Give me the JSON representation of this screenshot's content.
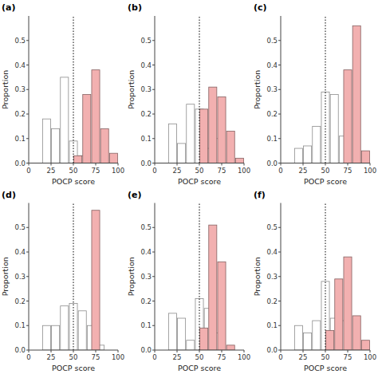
{
  "chart_data": [
    {
      "type": "bar",
      "title": "(a)",
      "xlabel": "POCP score",
      "ylabel": "Proportion",
      "series": [
        {
          "color": "#ffffff",
          "x": [
            20,
            30,
            40,
            50,
            60
          ],
          "values": [
            0.18,
            0.14,
            0.35,
            0.09,
            0.03
          ]
        },
        {
          "color": "#f2b0b0",
          "x": [
            55,
            65,
            75,
            85,
            95
          ],
          "values": [
            0.03,
            0.28,
            0.38,
            0.14,
            0.04
          ]
        }
      ],
      "reference_x": 50,
      "xlim": [
        0,
        100
      ],
      "xticks": [
        0,
        25,
        50,
        75,
        100
      ],
      "ylim": [
        0,
        0.6
      ],
      "yticks": [
        {
          "value": 0,
          "label": "0.0"
        },
        0.1,
        0.2,
        0.3,
        0.4,
        0.5
      ],
      "grid": false
    },
    {
      "type": "bar",
      "title": "(b)",
      "xlabel": "POCP score",
      "ylabel": "Proportion",
      "series": [
        {
          "color": "#ffffff",
          "x": [
            20,
            30,
            40,
            50,
            60,
            70
          ],
          "values": [
            0.16,
            0.08,
            0.24,
            0.22,
            0.06,
            0.1
          ]
        },
        {
          "color": "#f2b0b0",
          "x": [
            55,
            65,
            75,
            85,
            95
          ],
          "values": [
            0.22,
            0.31,
            0.27,
            0.13,
            0.02
          ]
        }
      ],
      "reference_x": 50,
      "xlim": [
        0,
        100
      ],
      "xticks": [
        0,
        25,
        50,
        75,
        100
      ],
      "ylim": [
        0,
        0.6
      ],
      "yticks": [
        {
          "value": 0,
          "label": "0.0"
        },
        0.1,
        0.2,
        0.3,
        0.4,
        0.5
      ],
      "grid": false
    },
    {
      "type": "bar",
      "title": "(c)",
      "xlabel": "POCP score",
      "ylabel": "Proportion",
      "series": [
        {
          "color": "#ffffff",
          "x": [
            20,
            30,
            40,
            50,
            60,
            70
          ],
          "values": [
            0.06,
            0.07,
            0.15,
            0.29,
            0.28,
            0.11
          ]
        },
        {
          "color": "#f2b0b0",
          "x": [
            75,
            85,
            95
          ],
          "values": [
            0.38,
            0.56,
            0.05
          ]
        }
      ],
      "reference_x": 50,
      "xlim": [
        0,
        100
      ],
      "xticks": [
        0,
        25,
        50,
        75,
        100
      ],
      "ylim": [
        0,
        0.6
      ],
      "yticks": [
        {
          "value": 0,
          "label": "0.0"
        },
        0.1,
        0.2,
        0.3,
        0.4,
        0.5
      ],
      "grid": false
    },
    {
      "type": "bar",
      "title": "(d)",
      "xlabel": "POCP score",
      "ylabel": "Proportion",
      "series": [
        {
          "color": "#ffffff",
          "x": [
            20,
            30,
            40,
            50,
            60,
            70,
            80
          ],
          "values": [
            0.1,
            0.1,
            0.18,
            0.19,
            0.16,
            0.1,
            0.02
          ]
        },
        {
          "color": "#f2b0b0",
          "x": [
            75
          ],
          "values": [
            0.57
          ]
        }
      ],
      "reference_x": 50,
      "xlim": [
        0,
        100
      ],
      "xticks": [
        0,
        25,
        50,
        75,
        100
      ],
      "ylim": [
        0,
        0.6
      ],
      "yticks": [
        {
          "value": 0,
          "label": "0.0"
        },
        0.1,
        0.2,
        0.3,
        0.4,
        0.5
      ],
      "grid": false
    },
    {
      "type": "bar",
      "title": "(e)",
      "xlabel": "POCP score",
      "ylabel": "Proportion",
      "series": [
        {
          "color": "#ffffff",
          "x": [
            20,
            30,
            40,
            50,
            60,
            70
          ],
          "values": [
            0.15,
            0.13,
            0.04,
            0.21,
            0.17,
            0.07
          ]
        },
        {
          "color": "#f2b0b0",
          "x": [
            55,
            65,
            75,
            85
          ],
          "values": [
            0.09,
            0.51,
            0.36,
            0.02
          ]
        }
      ],
      "reference_x": 50,
      "xlim": [
        0,
        100
      ],
      "xticks": [
        0,
        25,
        50,
        75,
        100
      ],
      "ylim": [
        0,
        0.6
      ],
      "yticks": [
        {
          "value": 0,
          "label": "0.0"
        },
        0.1,
        0.2,
        0.3,
        0.4,
        0.5
      ],
      "grid": false
    },
    {
      "type": "bar",
      "title": "(f)",
      "xlabel": "POCP score",
      "ylabel": "Proportion",
      "series": [
        {
          "color": "#ffffff",
          "x": [
            20,
            30,
            40,
            50,
            60,
            70
          ],
          "values": [
            0.1,
            0.07,
            0.12,
            0.28,
            0.13,
            0.12
          ]
        },
        {
          "color": "#f2b0b0",
          "x": [
            55,
            65,
            75,
            85,
            95
          ],
          "values": [
            0.08,
            0.29,
            0.38,
            0.14,
            0.04
          ]
        }
      ],
      "reference_x": 50,
      "xlim": [
        0,
        100
      ],
      "xticks": [
        0,
        25,
        50,
        75,
        100
      ],
      "ylim": [
        0,
        0.6
      ],
      "yticks": [
        {
          "value": 0,
          "label": "0.0"
        },
        0.1,
        0.2,
        0.3,
        0.4,
        0.5
      ],
      "grid": false
    }
  ]
}
